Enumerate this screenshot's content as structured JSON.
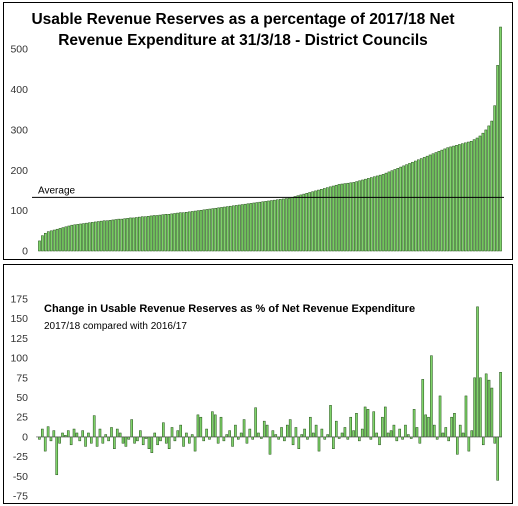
{
  "chart_data": [
    {
      "type": "bar",
      "title": "Usable Revenue Reserves as a percentage of 2017/18 Net Revenue Expenditure at 31/3/18 - District Councils",
      "title_lines": [
        "Usable Revenue Reserves as a percentage of 2017/18 Net",
        "Revenue Expenditure at 31/3/18 - District Councils"
      ],
      "yticks": [
        "0",
        "100",
        "200",
        "300",
        "400",
        "500"
      ],
      "ylim": [
        0,
        560
      ],
      "grid": false,
      "bar_color": "#7fd36a",
      "bar_edge_color": "#1f4d14",
      "average": {
        "label": "Average",
        "value": 133
      },
      "values": [
        25,
        38,
        44,
        48,
        50,
        52,
        54,
        56,
        58,
        60,
        62,
        64,
        65,
        66,
        67,
        68,
        69,
        70,
        71,
        72,
        73,
        74,
        75,
        75,
        76,
        77,
        78,
        79,
        79,
        80,
        81,
        82,
        82,
        83,
        84,
        85,
        85,
        86,
        87,
        88,
        88,
        89,
        90,
        91,
        91,
        92,
        93,
        94,
        95,
        95,
        96,
        97,
        98,
        99,
        100,
        101,
        102,
        103,
        104,
        105,
        106,
        107,
        108,
        109,
        110,
        111,
        112,
        113,
        114,
        115,
        116,
        117,
        118,
        119,
        120,
        121,
        122,
        123,
        124,
        125,
        126,
        127,
        128,
        129,
        130,
        131,
        133,
        135,
        137,
        139,
        141,
        143,
        145,
        147,
        149,
        151,
        153,
        155,
        157,
        159,
        161,
        163,
        165,
        166,
        167,
        168,
        169,
        170,
        172,
        174,
        176,
        178,
        180,
        182,
        184,
        186,
        188,
        190,
        193,
        196,
        199,
        202,
        205,
        208,
        211,
        214,
        217,
        220,
        223,
        226,
        229,
        232,
        235,
        238,
        241,
        244,
        247,
        250,
        253,
        256,
        258,
        260,
        262,
        264,
        266,
        268,
        270,
        272,
        276,
        280,
        285,
        292,
        300,
        310,
        322,
        360,
        460,
        555
      ]
    },
    {
      "type": "bar",
      "title": "Change in Usable Revenue Reserves as % of Net Revenue Expenditure",
      "subtitle": "2017/18 compared with 2016/17",
      "yticks": [
        "-75",
        "-50",
        "-25",
        "0",
        "25",
        "50",
        "75",
        "100",
        "125",
        "150",
        "175"
      ],
      "ylim": [
        -80,
        180
      ],
      "grid": false,
      "bar_color": "#7fd36a",
      "bar_edge_color": "#1f4d14",
      "values": [
        -3,
        10,
        -18,
        13,
        -5,
        8,
        -48,
        -8,
        5,
        2,
        8,
        -10,
        10,
        5,
        -5,
        8,
        -12,
        5,
        -8,
        27,
        -12,
        10,
        -8,
        3,
        -5,
        12,
        -15,
        10,
        5,
        -8,
        -12,
        -3,
        22,
        -8,
        -5,
        8,
        -10,
        -2,
        -15,
        -20,
        5,
        -10,
        -5,
        18,
        -8,
        -15,
        12,
        -5,
        8,
        15,
        -12,
        5,
        -8,
        3,
        -18,
        28,
        25,
        -5,
        10,
        -3,
        32,
        28,
        -8,
        25,
        -5,
        3,
        8,
        -12,
        15,
        -3,
        5,
        22,
        -8,
        10,
        -3,
        37,
        5,
        -2,
        20,
        15,
        -22,
        8,
        3,
        -3,
        12,
        -5,
        15,
        22,
        -10,
        12,
        -15,
        3,
        10,
        -3,
        25,
        5,
        15,
        -18,
        10,
        -3,
        3,
        40,
        -15,
        20,
        -2,
        5,
        12,
        -3,
        25,
        8,
        30,
        -5,
        10,
        38,
        35,
        -3,
        32,
        5,
        -10,
        25,
        38,
        5,
        8,
        15,
        -5,
        10,
        -3,
        15,
        3,
        -2,
        35,
        12,
        -8,
        73,
        28,
        25,
        103,
        15,
        -3,
        52,
        5,
        12,
        -5,
        25,
        30,
        -22,
        15,
        5,
        52,
        -18,
        8,
        75,
        165,
        75,
        -10,
        80,
        72,
        62,
        -8,
        -55,
        82
      ]
    }
  ]
}
